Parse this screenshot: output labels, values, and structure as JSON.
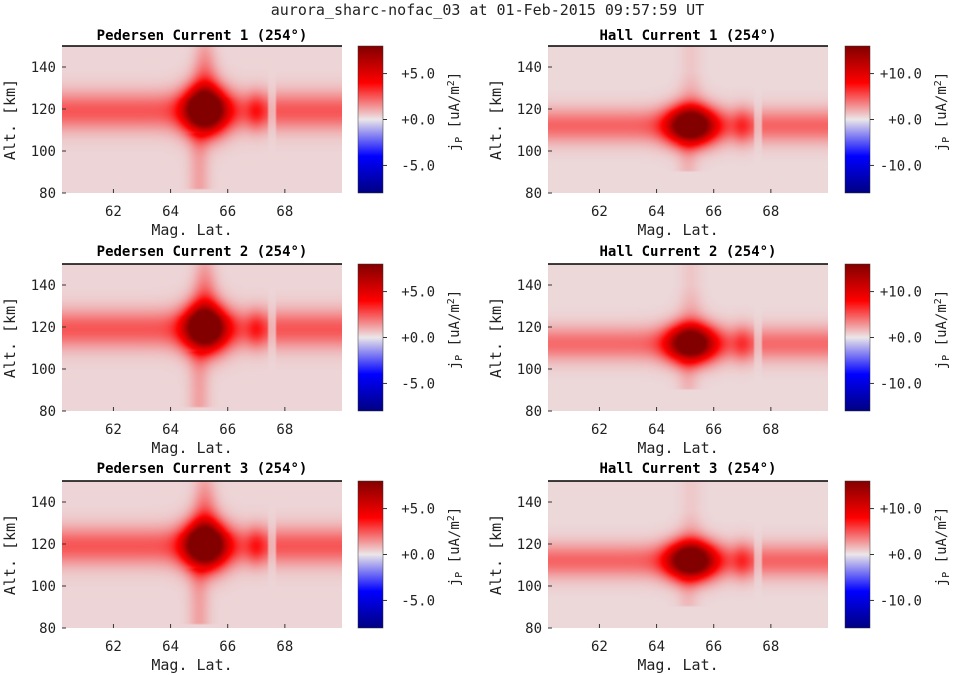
{
  "figure": {
    "suptitle": "aurora_sharc-nofac_03 at 01-Feb-2015 09:57:59 UT"
  },
  "chart_data": [
    {
      "type": "heatmap",
      "title": "Pedersen Current 1 (254°)",
      "xlabel": "Mag. Lat.",
      "ylabel": "Alt. [km]",
      "colorbar_label": "jP [uA/m2]",
      "colorbar_ticks": [
        "+5.0",
        "+0.0",
        "-5.0"
      ],
      "xticks": [
        62,
        64,
        66,
        68
      ],
      "yticks": [
        80,
        100,
        120,
        140
      ],
      "xlim": [
        60.2,
        70.0
      ],
      "ylim": [
        80,
        150
      ],
      "clim": [
        -8,
        8
      ],
      "colormap": "seismic",
      "background_value": 0.3,
      "band": {
        "center_alt": 119,
        "halfwidth_km": 9,
        "value": 2.2
      },
      "blob": {
        "lat": 65.2,
        "alt": 119,
        "value": 8.0,
        "width_lat": 0.5,
        "height_km": 10
      },
      "plume": {
        "lat": 65.2,
        "alt_from": 125,
        "alt_to": 150,
        "value": 2.6
      },
      "tail_below": {
        "lat": 65.0,
        "alt_from": 82,
        "alt_to": 108,
        "value": 0.9
      },
      "side_blob": {
        "lat": 67.0,
        "alt": 119,
        "value": 2.6
      },
      "band_gap_lat": [
        67.4,
        67.7
      ]
    },
    {
      "type": "heatmap",
      "title": "Hall Current 1 (254°)",
      "xlabel": "Mag. Lat.",
      "ylabel": "Alt. [km]",
      "colorbar_label": "jP [uA/m2]",
      "colorbar_ticks": [
        "+10.0",
        "+0.0",
        "-10.0"
      ],
      "xticks": [
        62,
        64,
        66,
        68
      ],
      "yticks": [
        80,
        100,
        120,
        140
      ],
      "xlim": [
        60.2,
        70.0
      ],
      "ylim": [
        80,
        150
      ],
      "clim": [
        -16,
        16
      ],
      "colormap": "seismic",
      "background_value": 0.5,
      "band": {
        "center_alt": 112,
        "halfwidth_km": 8,
        "value": 4.0
      },
      "blob": {
        "lat": 65.2,
        "alt": 112,
        "value": 16.0,
        "width_lat": 0.55,
        "height_km": 8
      },
      "plume": {
        "lat": 65.2,
        "alt_from": 120,
        "alt_to": 138,
        "value": 2.0
      },
      "tail_below": {
        "lat": 65.1,
        "alt_from": 90,
        "alt_to": 104,
        "value": 1.2
      },
      "side_blob": {
        "lat": 67.0,
        "alt": 112,
        "value": 4.5
      },
      "band_gap_lat": [
        67.4,
        67.7
      ]
    },
    {
      "type": "heatmap",
      "title": "Pedersen Current 2 (254°)",
      "xlabel": "Mag. Lat.",
      "ylabel": "Alt. [km]",
      "colorbar_label": "jP [uA/m2]",
      "colorbar_ticks": [
        "+5.0",
        "+0.0",
        "-5.0"
      ],
      "xticks": [
        62,
        64,
        66,
        68
      ],
      "yticks": [
        80,
        100,
        120,
        140
      ],
      "xlim": [
        60.2,
        70.0
      ],
      "ylim": [
        80,
        150
      ],
      "clim": [
        -8,
        8
      ],
      "colormap": "seismic",
      "background_value": 0.3,
      "band": {
        "center_alt": 119,
        "halfwidth_km": 9,
        "value": 2.2
      },
      "blob": {
        "lat": 65.2,
        "alt": 119,
        "value": 7.6,
        "width_lat": 0.5,
        "height_km": 10
      },
      "plume": {
        "lat": 65.2,
        "alt_from": 125,
        "alt_to": 150,
        "value": 2.6
      },
      "tail_below": {
        "lat": 65.0,
        "alt_from": 82,
        "alt_to": 108,
        "value": 0.9
      },
      "side_blob": {
        "lat": 67.0,
        "alt": 119,
        "value": 2.4
      },
      "band_gap_lat": [
        67.4,
        67.7
      ]
    },
    {
      "type": "heatmap",
      "title": "Hall Current 2 (254°)",
      "xlabel": "Mag. Lat.",
      "ylabel": "Alt. [km]",
      "colorbar_label": "jP [uA/m2]",
      "colorbar_ticks": [
        "+10.0",
        "+0.0",
        "-10.0"
      ],
      "xticks": [
        62,
        64,
        66,
        68
      ],
      "yticks": [
        80,
        100,
        120,
        140
      ],
      "xlim": [
        60.2,
        70.0
      ],
      "ylim": [
        80,
        150
      ],
      "clim": [
        -16,
        16
      ],
      "colormap": "seismic",
      "background_value": 0.5,
      "band": {
        "center_alt": 112,
        "halfwidth_km": 8,
        "value": 3.8
      },
      "blob": {
        "lat": 65.2,
        "alt": 112,
        "value": 15.0,
        "width_lat": 0.55,
        "height_km": 8
      },
      "plume": {
        "lat": 65.2,
        "alt_from": 120,
        "alt_to": 140,
        "value": 2.0
      },
      "tail_below": {
        "lat": 65.1,
        "alt_from": 90,
        "alt_to": 104,
        "value": 1.2
      },
      "side_blob": {
        "lat": 67.0,
        "alt": 112,
        "value": 4.2
      },
      "band_gap_lat": [
        67.4,
        67.7
      ]
    },
    {
      "type": "heatmap",
      "title": "Pedersen Current 3 (254°)",
      "xlabel": "Mag. Lat.",
      "ylabel": "Alt. [km]",
      "colorbar_label": "jP [uA/m2]",
      "colorbar_ticks": [
        "+5.0",
        "+0.0",
        "-5.0"
      ],
      "xticks": [
        62,
        64,
        66,
        68
      ],
      "yticks": [
        80,
        100,
        120,
        140
      ],
      "xlim": [
        60.2,
        70.0
      ],
      "ylim": [
        80,
        150
      ],
      "clim": [
        -8,
        8
      ],
      "colormap": "seismic",
      "background_value": 0.3,
      "band": {
        "center_alt": 119,
        "halfwidth_km": 9,
        "value": 2.2
      },
      "blob": {
        "lat": 65.2,
        "alt": 119,
        "value": 8.0,
        "width_lat": 0.5,
        "height_km": 10
      },
      "plume": {
        "lat": 65.2,
        "alt_from": 125,
        "alt_to": 150,
        "value": 2.6
      },
      "tail_below": {
        "lat": 65.0,
        "alt_from": 82,
        "alt_to": 108,
        "value": 0.9
      },
      "side_blob": {
        "lat": 67.0,
        "alt": 119,
        "value": 2.5
      },
      "band_gap_lat": [
        67.4,
        67.7
      ]
    },
    {
      "type": "heatmap",
      "title": "Hall Current 3 (254°)",
      "xlabel": "Mag. Lat.",
      "ylabel": "Alt. [km]",
      "colorbar_label": "jP [uA/m2]",
      "colorbar_ticks": [
        "+10.0",
        "+0.0",
        "-10.0"
      ],
      "xticks": [
        62,
        64,
        66,
        68
      ],
      "yticks": [
        80,
        100,
        120,
        140
      ],
      "xlim": [
        60.2,
        70.0
      ],
      "ylim": [
        80,
        150
      ],
      "clim": [
        -16,
        16
      ],
      "colormap": "seismic",
      "background_value": 0.5,
      "band": {
        "center_alt": 112,
        "halfwidth_km": 8,
        "value": 4.0
      },
      "blob": {
        "lat": 65.2,
        "alt": 112,
        "value": 16.0,
        "width_lat": 0.55,
        "height_km": 8
      },
      "plume": {
        "lat": 65.2,
        "alt_from": 120,
        "alt_to": 136,
        "value": 1.8
      },
      "tail_below": {
        "lat": 65.1,
        "alt_from": 90,
        "alt_to": 104,
        "value": 1.0
      },
      "side_blob": {
        "lat": 67.0,
        "alt": 112,
        "value": 4.5
      },
      "band_gap_lat": [
        67.4,
        67.7
      ]
    }
  ]
}
